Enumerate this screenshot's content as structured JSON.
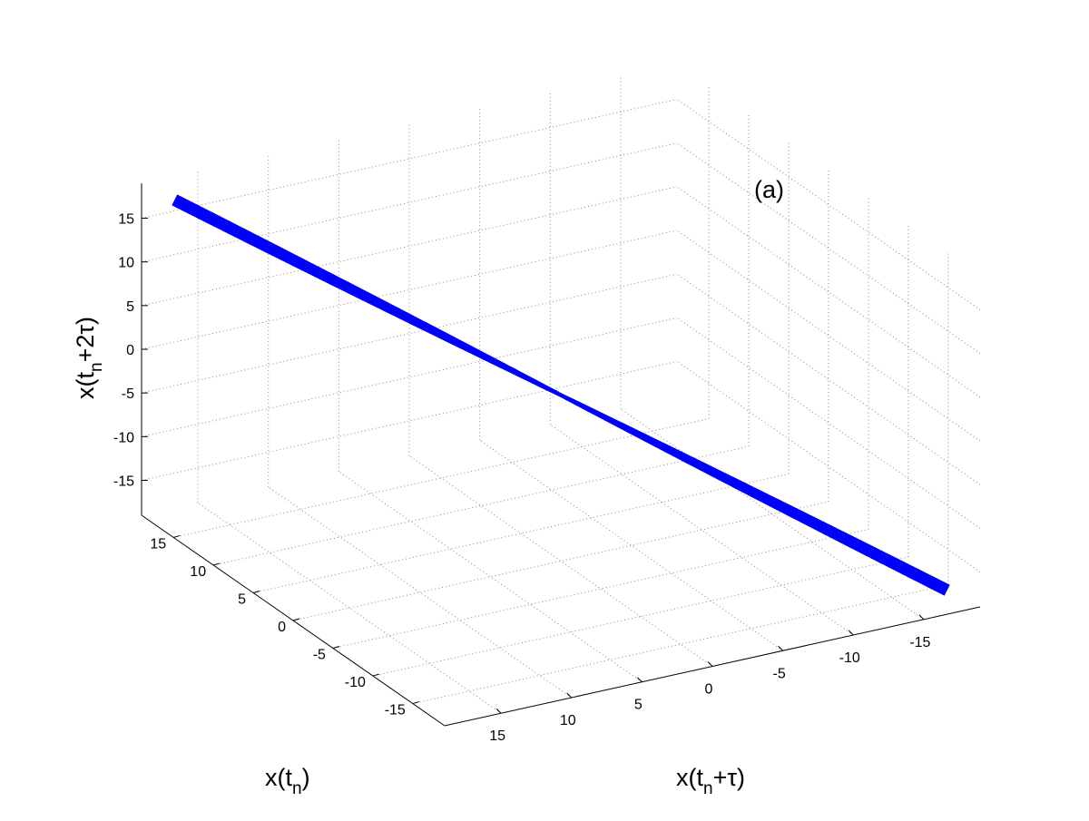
{
  "chart_data": {
    "type": "line",
    "view": "3d",
    "panel_label": "(a)",
    "axes": {
      "x": {
        "label_base": "x(t",
        "label_sub": "n",
        "label_tail": ")",
        "ticks": [
          15,
          10,
          5,
          0,
          -5,
          -10,
          -15
        ],
        "lim": [
          -19,
          19
        ]
      },
      "y": {
        "label_base": "x(t",
        "label_sub": "n",
        "label_tail": "+τ)",
        "ticks": [
          15,
          10,
          5,
          0,
          -5,
          -10,
          -15
        ],
        "lim": [
          -19,
          19
        ]
      },
      "z": {
        "label_base": "x(t",
        "label_sub": "n",
        "label_tail": "+2τ)",
        "ticks": [
          15,
          10,
          5,
          0,
          -5,
          -10,
          -15
        ],
        "lim": [
          -19,
          19
        ]
      }
    },
    "grid": true,
    "line_color": "#0000ff",
    "series": [
      {
        "x": [
          17.5,
          12,
          6,
          0,
          -6,
          -12,
          -17.5
        ],
        "y": [
          17.5,
          12,
          6,
          0,
          -6,
          -12,
          -17.5
        ],
        "z": [
          17.5,
          12,
          6,
          0,
          -6,
          -12,
          -17.5
        ]
      }
    ]
  }
}
